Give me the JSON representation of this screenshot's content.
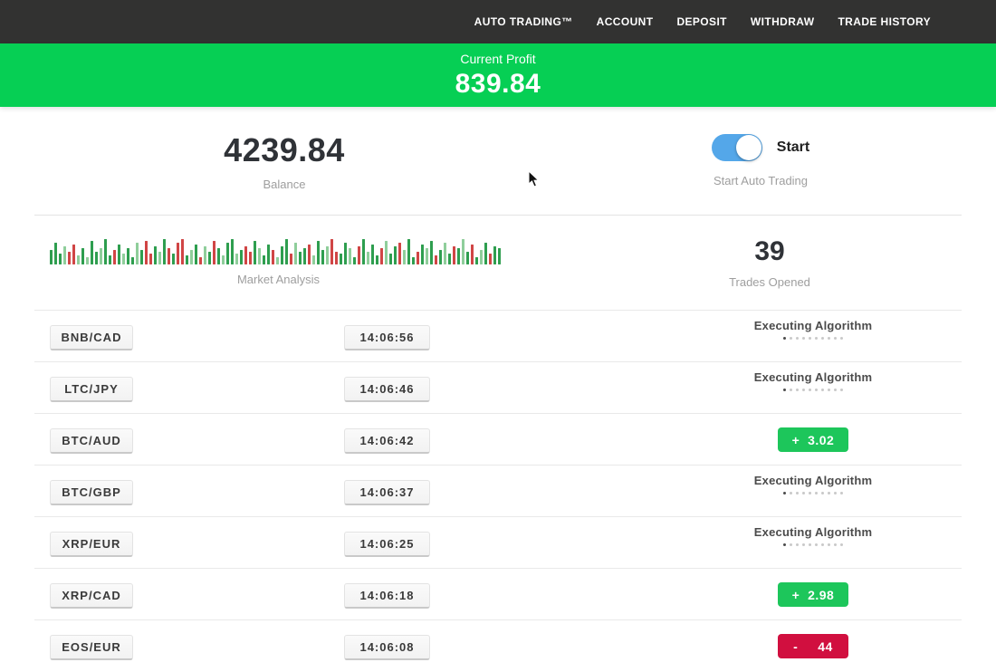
{
  "nav": {
    "items": [
      {
        "id": "auto-trading",
        "label": "AUTO TRADING™"
      },
      {
        "id": "account",
        "label": "ACCOUNT"
      },
      {
        "id": "deposit",
        "label": "DEPOSIT"
      },
      {
        "id": "withdraw",
        "label": "WITHDRAW"
      },
      {
        "id": "trade-history",
        "label": "TRADE HISTORY"
      }
    ]
  },
  "banner": {
    "label": "Current Profit",
    "value": "839.84"
  },
  "account": {
    "balance": "4239.84",
    "balance_label": "Balance",
    "toggle_state": "on",
    "toggle_label": "Start",
    "toggle_caption": "Start Auto Trading"
  },
  "market": {
    "caption": "Market Analysis",
    "trades_opened": "39",
    "trades_opened_label": "Trades Opened",
    "bars": [
      [
        "g",
        16
      ],
      [
        "g",
        24
      ],
      [
        "g",
        12
      ],
      [
        "G",
        20
      ],
      [
        "r",
        14
      ],
      [
        "r",
        22
      ],
      [
        "G",
        10
      ],
      [
        "g",
        18
      ],
      [
        "G",
        8
      ],
      [
        "g",
        26
      ],
      [
        "g",
        14
      ],
      [
        "G",
        18
      ],
      [
        "g",
        28
      ],
      [
        "g",
        10
      ],
      [
        "r",
        16
      ],
      [
        "g",
        22
      ],
      [
        "G",
        12
      ],
      [
        "g",
        18
      ],
      [
        "g",
        8
      ],
      [
        "G",
        24
      ],
      [
        "g",
        16
      ],
      [
        "r",
        26
      ],
      [
        "r",
        12
      ],
      [
        "g",
        20
      ],
      [
        "G",
        14
      ],
      [
        "g",
        28
      ],
      [
        "r",
        18
      ],
      [
        "g",
        12
      ],
      [
        "r",
        24
      ],
      [
        "r",
        28
      ],
      [
        "g",
        10
      ],
      [
        "G",
        16
      ],
      [
        "g",
        22
      ],
      [
        "r",
        8
      ],
      [
        "G",
        20
      ],
      [
        "g",
        14
      ],
      [
        "r",
        26
      ],
      [
        "g",
        18
      ],
      [
        "G",
        10
      ],
      [
        "g",
        24
      ],
      [
        "g",
        28
      ],
      [
        "G",
        12
      ],
      [
        "g",
        16
      ],
      [
        "r",
        20
      ],
      [
        "r",
        14
      ],
      [
        "g",
        26
      ],
      [
        "G",
        18
      ],
      [
        "g",
        10
      ],
      [
        "g",
        22
      ],
      [
        "r",
        16
      ],
      [
        "G",
        8
      ],
      [
        "g",
        20
      ],
      [
        "g",
        28
      ],
      [
        "r",
        12
      ],
      [
        "G",
        24
      ],
      [
        "g",
        14
      ],
      [
        "g",
        18
      ],
      [
        "r",
        22
      ],
      [
        "G",
        10
      ],
      [
        "g",
        26
      ],
      [
        "g",
        16
      ],
      [
        "G",
        20
      ],
      [
        "r",
        28
      ],
      [
        "r",
        14
      ],
      [
        "g",
        12
      ],
      [
        "g",
        24
      ],
      [
        "G",
        18
      ],
      [
        "g",
        8
      ],
      [
        "r",
        20
      ],
      [
        "g",
        28
      ],
      [
        "G",
        14
      ],
      [
        "g",
        22
      ],
      [
        "g",
        10
      ],
      [
        "r",
        18
      ],
      [
        "G",
        26
      ],
      [
        "g",
        12
      ],
      [
        "g",
        20
      ],
      [
        "r",
        24
      ],
      [
        "G",
        16
      ],
      [
        "g",
        28
      ],
      [
        "g",
        8
      ],
      [
        "r",
        14
      ],
      [
        "g",
        22
      ],
      [
        "G",
        18
      ],
      [
        "g",
        26
      ],
      [
        "r",
        10
      ],
      [
        "g",
        16
      ],
      [
        "G",
        24
      ],
      [
        "g",
        12
      ],
      [
        "r",
        20
      ],
      [
        "g",
        18
      ],
      [
        "G",
        28
      ],
      [
        "g",
        14
      ],
      [
        "r",
        22
      ],
      [
        "g",
        8
      ],
      [
        "G",
        16
      ],
      [
        "g",
        24
      ],
      [
        "r",
        12
      ],
      [
        "g",
        20
      ],
      [
        "g",
        18
      ]
    ]
  },
  "trades": {
    "executing_label": "Executing Algorithm",
    "executing_dots": 10,
    "rows": [
      {
        "pair": "BNB/CAD",
        "time": "14:06:56",
        "status": "executing"
      },
      {
        "pair": "LTC/JPY",
        "time": "14:06:46",
        "status": "executing"
      },
      {
        "pair": "BTC/AUD",
        "time": "14:06:42",
        "status": "profit",
        "result": "+  3.02"
      },
      {
        "pair": "BTC/GBP",
        "time": "14:06:37",
        "status": "executing"
      },
      {
        "pair": "XRP/EUR",
        "time": "14:06:25",
        "status": "executing"
      },
      {
        "pair": "XRP/CAD",
        "time": "14:06:18",
        "status": "profit",
        "result": "+  2.98"
      },
      {
        "pair": "EOS/EUR",
        "time": "14:06:08",
        "status": "loss",
        "result": "-     44"
      }
    ]
  },
  "colors": {
    "banner_green": "#06cf54",
    "profit_green": "#1dc65b",
    "loss_red": "#d10f3f",
    "nav_bg": "#323231",
    "toggle_blue": "#54a7e9"
  }
}
